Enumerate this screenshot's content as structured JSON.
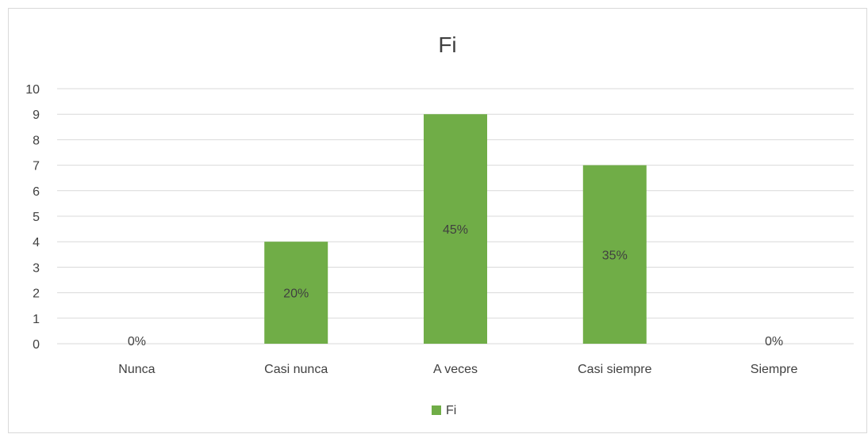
{
  "chart_data": {
    "type": "bar",
    "title": "Fi",
    "categories": [
      "Nunca",
      "Casi nunca",
      "A veces",
      "Casi siempre",
      "Siempre"
    ],
    "series": [
      {
        "name": "Fi",
        "values": [
          0,
          4,
          9,
          7,
          0
        ],
        "color": "#70ad47"
      }
    ],
    "data_labels": [
      "0%",
      "20%",
      "45%",
      "35%",
      "0%"
    ],
    "ylim": [
      0,
      10
    ],
    "yticks": [
      "0",
      "1",
      "2",
      "3",
      "4",
      "5",
      "6",
      "7",
      "8",
      "9",
      "10"
    ],
    "grid": true,
    "legend": "bottom"
  },
  "colors": {
    "series": "#70ad47",
    "grid": "#d9d9d9",
    "text": "#404040"
  }
}
